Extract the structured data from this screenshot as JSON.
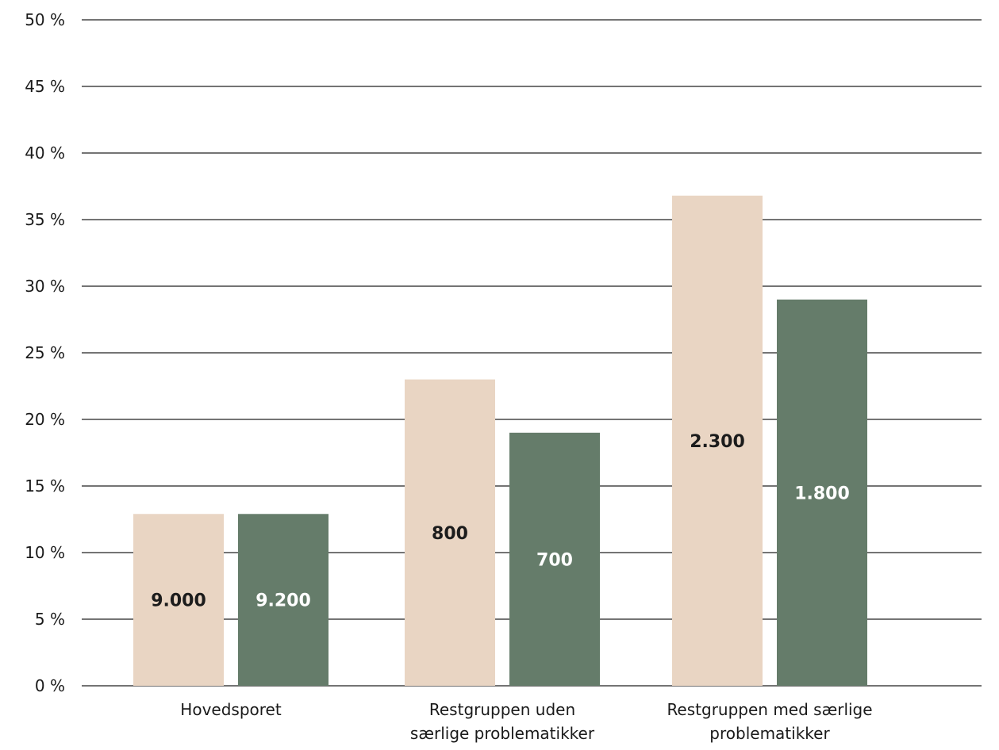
{
  "chart_data": {
    "type": "bar",
    "categories": [
      [
        "Hovedsporet"
      ],
      [
        "Restgruppen uden",
        "særlige problematikker"
      ],
      [
        "Restgruppen med særlige",
        "problematikker"
      ]
    ],
    "series": [
      {
        "values": [
          12.9,
          23.0,
          36.8
        ],
        "labels": [
          "9.000",
          "800",
          "2.300"
        ],
        "color": "#e9d5c3",
        "label_color": "#1c1c1c"
      },
      {
        "values": [
          12.9,
          19.0,
          29.0
        ],
        "labels": [
          "9.200",
          "700",
          "1.800"
        ],
        "color": "#657c6a",
        "label_color": "#ffffff"
      }
    ],
    "ylim": [
      0,
      50
    ],
    "yticks": [
      0,
      5,
      10,
      15,
      20,
      25,
      30,
      35,
      40,
      45,
      50
    ],
    "ytick_suffix": " %",
    "grid": true,
    "title": "",
    "xlabel": "",
    "ylabel": ""
  }
}
